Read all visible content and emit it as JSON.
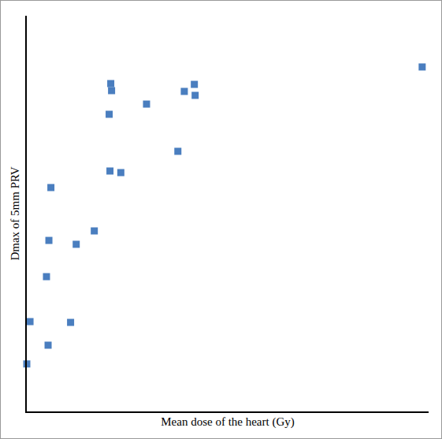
{
  "chart_data": {
    "type": "scatter",
    "x_label": "Mean dose of the heart (Gy)",
    "y_label": "Dmax of 5mm PRV",
    "x": [
      0.0,
      0.08,
      0.53,
      1.09,
      0.49,
      0.55,
      0.6,
      1.23,
      1.68,
      2.05,
      2.09,
      2.11,
      2.07,
      2.34,
      2.98,
      3.76,
      3.92,
      4.17,
      4.19,
      9.84
    ],
    "y": [
      6.0,
      11.35,
      8.37,
      11.25,
      17.03,
      21.61,
      28.29,
      21.12,
      22.81,
      37.55,
      41.43,
      40.54,
      30.38,
      30.18,
      38.84,
      32.87,
      40.44,
      41.33,
      39.94,
      43.53
    ],
    "color": "#4a7ebf",
    "marker": "square",
    "xlim": [
      0,
      10
    ],
    "ylim": [
      0,
      50
    ],
    "tick_labels": false,
    "grid": false
  }
}
